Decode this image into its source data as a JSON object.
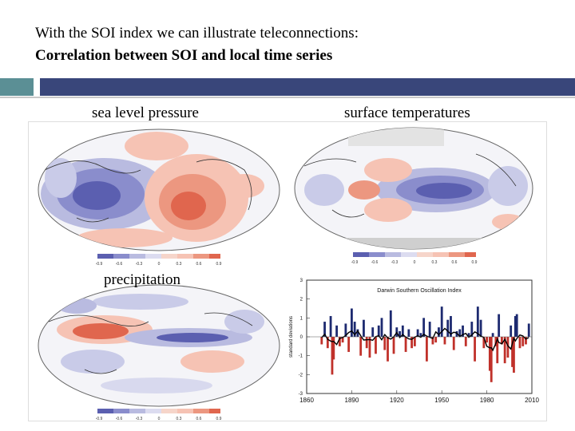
{
  "slide": {
    "title_line1": "With the SOI index we can illustrate teleconnections:",
    "title_line2": "Correlation between SOI and local time series"
  },
  "maps": {
    "slp_label": "sea level pressure",
    "sst_label": "surface temperatures",
    "precip_label": "precipitation",
    "colorbar_slp": [
      "-0.9",
      "-0.6",
      "-0.3",
      "0",
      "0.3",
      "0.6",
      "0.9"
    ],
    "colorbar_sst": [
      "-0.9",
      "-0.6",
      "-0.3",
      "0",
      "0.3",
      "0.6",
      "0.9"
    ],
    "colorbar_precip": [
      "-0.9",
      "-0.6",
      "-0.3",
      "0",
      "0.3",
      "0.6",
      "0.9"
    ],
    "colors": {
      "negative": "#5b5fb0",
      "positive": "#e0664e",
      "land": "#ffffff"
    }
  },
  "chart_data": {
    "type": "area",
    "title": "Darwin Southern Oscillation Index",
    "ylabel": "standard deviations",
    "xlabel": "",
    "xlim": [
      1860,
      2010
    ],
    "ylim": [
      -3,
      3
    ],
    "x_ticks": [
      1860,
      1890,
      1920,
      1950,
      1980,
      2010
    ],
    "y_ticks": [
      3,
      2,
      1,
      0,
      -1,
      -2,
      -3
    ],
    "colors": {
      "positive": "#1d2a70",
      "negative": "#c0312a",
      "smooth": "#000000"
    },
    "series": [
      {
        "values": [
          [
            1870,
            -0.4
          ],
          [
            1872,
            0.8
          ],
          [
            1874,
            -0.6
          ],
          [
            1876,
            1.1
          ],
          [
            1877,
            -2.0
          ],
          [
            1878,
            -1.2
          ],
          [
            1880,
            0.6
          ],
          [
            1882,
            -0.5
          ],
          [
            1884,
            -0.3
          ],
          [
            1886,
            0.7
          ],
          [
            1888,
            -0.8
          ],
          [
            1890,
            1.5
          ],
          [
            1892,
            0.8
          ],
          [
            1894,
            0.4
          ],
          [
            1896,
            -1.0
          ],
          [
            1898,
            0.9
          ],
          [
            1900,
            -0.6
          ],
          [
            1902,
            -1.1
          ],
          [
            1904,
            0.5
          ],
          [
            1906,
            -0.9
          ],
          [
            1908,
            0.6
          ],
          [
            1910,
            1.0
          ],
          [
            1912,
            -0.7
          ],
          [
            1914,
            -1.3
          ],
          [
            1916,
            1.4
          ],
          [
            1918,
            -0.9
          ],
          [
            1920,
            0.5
          ],
          [
            1922,
            0.3
          ],
          [
            1924,
            0.6
          ],
          [
            1926,
            -0.8
          ],
          [
            1928,
            0.4
          ],
          [
            1930,
            -0.6
          ],
          [
            1932,
            -0.5
          ],
          [
            1934,
            0.4
          ],
          [
            1936,
            0.2
          ],
          [
            1938,
            1.0
          ],
          [
            1940,
            -1.3
          ],
          [
            1942,
            0.8
          ],
          [
            1944,
            -0.4
          ],
          [
            1946,
            -0.3
          ],
          [
            1948,
            0.5
          ],
          [
            1950,
            1.6
          ],
          [
            1952,
            -0.4
          ],
          [
            1954,
            0.9
          ],
          [
            1956,
            1.1
          ],
          [
            1958,
            -0.7
          ],
          [
            1960,
            0.3
          ],
          [
            1962,
            0.4
          ],
          [
            1964,
            0.6
          ],
          [
            1966,
            -0.5
          ],
          [
            1968,
            0.2
          ],
          [
            1970,
            0.8
          ],
          [
            1972,
            -1.3
          ],
          [
            1974,
            1.6
          ],
          [
            1976,
            0.9
          ],
          [
            1978,
            -0.6
          ],
          [
            1980,
            -0.3
          ],
          [
            1982,
            -1.8
          ],
          [
            1983,
            -2.4
          ],
          [
            1984,
            0.2
          ],
          [
            1986,
            -0.5
          ],
          [
            1987,
            -1.4
          ],
          [
            1988,
            1.2
          ],
          [
            1990,
            -0.4
          ],
          [
            1992,
            -1.4
          ],
          [
            1994,
            -1.1
          ],
          [
            1996,
            0.6
          ],
          [
            1997,
            -1.6
          ],
          [
            1998,
            -1.9
          ],
          [
            1999,
            1.1
          ],
          [
            2000,
            1.2
          ],
          [
            2002,
            -0.6
          ],
          [
            2004,
            -0.5
          ],
          [
            2006,
            -0.4
          ],
          [
            2008,
            0.7
          ]
        ]
      }
    ]
  }
}
